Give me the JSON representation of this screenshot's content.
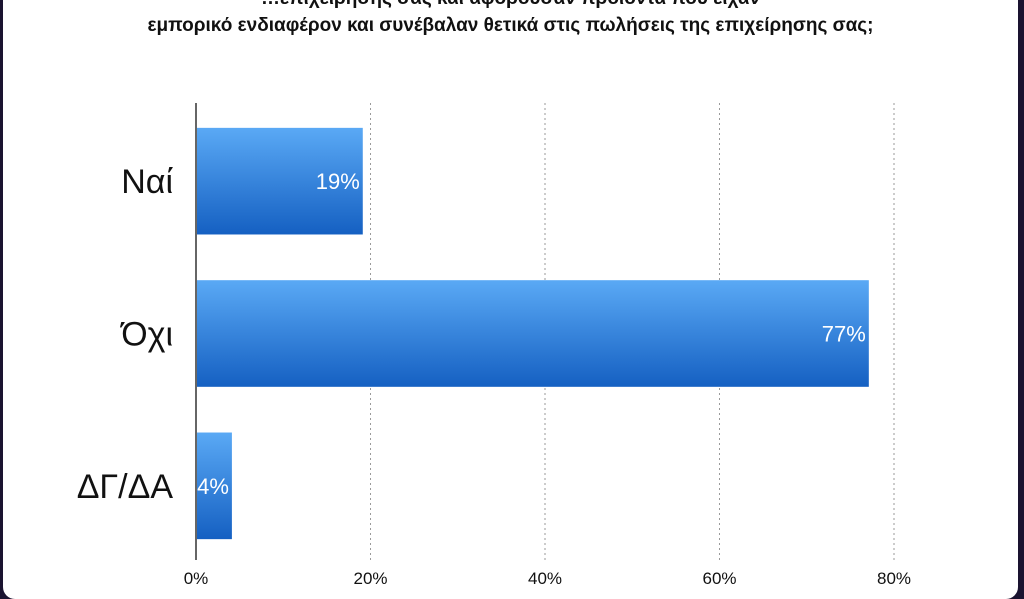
{
  "chart_data": {
    "type": "bar",
    "orientation": "horizontal",
    "title_line1": "…επιχείρησης σας και αφορούσαν προϊόντα που είχαν",
    "title_line2": "εμπορικό ενδιαφέρον και συνέβαλαν θετικά στις πωλήσεις της επιχείρησης σας;",
    "categories": [
      "Ναί",
      "Όχι",
      "ΔΓ/ΔΑ"
    ],
    "values": [
      19,
      77,
      4
    ],
    "value_labels": [
      "19%",
      "77%",
      "4%"
    ],
    "xlim": [
      0,
      80
    ],
    "xticks": [
      0,
      20,
      40,
      60,
      80
    ],
    "xtick_labels": [
      "0%",
      "20%",
      "40%",
      "60%",
      "80%"
    ],
    "grid": "vertical dotted",
    "legend": "none",
    "colors": {
      "bar_top": "#5aa9f5",
      "bar_bottom": "#1560c2",
      "grid": "#9a9a9a",
      "axis": "#000000"
    }
  }
}
